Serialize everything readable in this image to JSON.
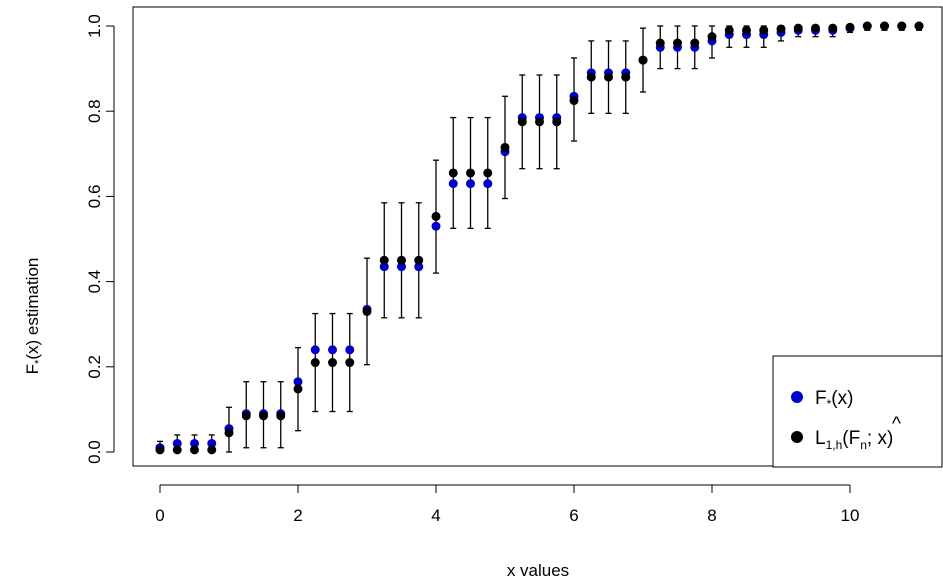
{
  "chart_data": {
    "type": "scatter",
    "xlabel": "x values",
    "ylabel_main": "F",
    "ylabel_sub": "*",
    "ylabel_rest": "(x) estimation",
    "xlim": [
      0,
      11
    ],
    "ylim": [
      0,
      1
    ],
    "xticks": [
      "0",
      "2",
      "4",
      "6",
      "8",
      "10"
    ],
    "xtick_values": [
      0,
      2,
      4,
      6,
      8,
      10
    ],
    "yticks": [
      "0.0",
      "0.2",
      "0.4",
      "0.6",
      "0.8",
      "1.0"
    ],
    "ytick_values": [
      0,
      0.2,
      0.4,
      0.6,
      0.8,
      1.0
    ],
    "grid": false,
    "legend_position": "bottom-right",
    "legend": {
      "true_main": "F",
      "true_sub": "*",
      "true_rest": "(x)",
      "est_main": "L",
      "est_sub": "1,h",
      "est_open": "(",
      "est_hat": "^",
      "est_F": "F",
      "est_n": "n",
      "est_rest": "; x)"
    },
    "colors": {
      "true": "#0000cc",
      "estimate": "#000000"
    },
    "x": [
      0,
      0.25,
      0.5,
      0.75,
      1,
      1.25,
      1.5,
      1.75,
      2,
      2.25,
      2.5,
      2.75,
      3,
      3.25,
      3.5,
      3.75,
      4,
      4.25,
      4.5,
      4.75,
      5,
      5.25,
      5.5,
      5.75,
      6,
      6.25,
      6.5,
      6.75,
      7,
      7.25,
      7.5,
      7.75,
      8,
      8.25,
      8.5,
      8.75,
      9,
      9.25,
      9.5,
      9.75,
      10,
      10.25,
      10.5,
      10.75,
      11
    ],
    "series": [
      {
        "name": "F*(x)",
        "values": [
          0.01,
          0.02,
          0.02,
          0.02,
          0.055,
          0.09,
          0.09,
          0.09,
          0.165,
          0.24,
          0.24,
          0.24,
          0.335,
          0.435,
          0.435,
          0.435,
          0.53,
          0.63,
          0.63,
          0.63,
          0.705,
          0.785,
          0.785,
          0.785,
          0.835,
          0.89,
          0.89,
          0.89,
          0.92,
          0.95,
          0.95,
          0.95,
          0.965,
          0.98,
          0.98,
          0.98,
          0.985,
          0.99,
          0.99,
          0.99,
          0.995,
          1.0,
          1.0,
          1.0,
          1.0
        ]
      },
      {
        "name": "L1,h(F^n; x)",
        "values": [
          0.005,
          0.005,
          0.005,
          0.005,
          0.045,
          0.085,
          0.085,
          0.085,
          0.148,
          0.21,
          0.21,
          0.21,
          0.33,
          0.45,
          0.45,
          0.45,
          0.553,
          0.655,
          0.655,
          0.655,
          0.715,
          0.775,
          0.775,
          0.775,
          0.825,
          0.88,
          0.88,
          0.88,
          0.92,
          0.96,
          0.96,
          0.96,
          0.975,
          0.99,
          0.99,
          0.99,
          0.993,
          0.995,
          0.995,
          0.995,
          0.997,
          1.0,
          1.0,
          1.0,
          1.0
        ],
        "lower": [
          0.0,
          0.0,
          0.0,
          0.0,
          0.0,
          0.01,
          0.01,
          0.01,
          0.05,
          0.095,
          0.095,
          0.095,
          0.205,
          0.315,
          0.315,
          0.315,
          0.42,
          0.525,
          0.525,
          0.525,
          0.595,
          0.665,
          0.665,
          0.665,
          0.73,
          0.795,
          0.795,
          0.795,
          0.845,
          0.9,
          0.9,
          0.9,
          0.925,
          0.95,
          0.95,
          0.95,
          0.965,
          0.975,
          0.975,
          0.975,
          0.985,
          0.99,
          0.99,
          0.99,
          0.99
        ],
        "upper": [
          0.025,
          0.04,
          0.04,
          0.04,
          0.105,
          0.165,
          0.165,
          0.165,
          0.245,
          0.325,
          0.325,
          0.325,
          0.455,
          0.585,
          0.585,
          0.585,
          0.685,
          0.785,
          0.785,
          0.785,
          0.835,
          0.885,
          0.885,
          0.885,
          0.925,
          0.965,
          0.965,
          0.965,
          0.995,
          1.0,
          1.0,
          1.0,
          1.0,
          1.0,
          1.0,
          1.0,
          1.0,
          1.0,
          1.0,
          1.0,
          1.0,
          1.0,
          1.0,
          1.0,
          1.0
        ]
      }
    ]
  }
}
